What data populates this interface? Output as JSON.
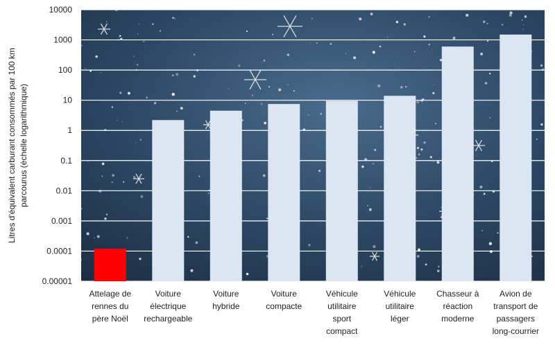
{
  "chart_data": {
    "type": "bar",
    "scale": "log",
    "categories": [
      "Attelage de rennes du père Noël",
      "Voiture électrique rechargeable",
      "Voiture hybride",
      "Voiture compacte",
      "Véhicule utilitaire sport compact",
      "Véhicule utilitaire léger",
      "Chasseur à réaction moderne",
      "Avion de transport de passagers long-courrier"
    ],
    "category_lines": [
      [
        "Attelage de",
        "rennes du",
        "père Noël"
      ],
      [
        "Voiture",
        "électrique",
        "rechargeable"
      ],
      [
        "Voiture",
        "hybride"
      ],
      [
        "Voiture",
        "compacte"
      ],
      [
        "Véhicule",
        "utilitaire",
        "sport",
        "compact"
      ],
      [
        "Véhicule",
        "utilitaire",
        "léger"
      ],
      [
        "Chasseur à",
        "réaction",
        "moderne"
      ],
      [
        "Avion de",
        "transport de",
        "passagers",
        "long-courrier"
      ]
    ],
    "values": [
      0.00012,
      2.2,
      4.5,
      7.5,
      9.5,
      14,
      600,
      1500
    ],
    "ylabel_lines": [
      "Litres d'équivalent carburant consommés par 100 km",
      "parcourus (échelle logarithmique)"
    ],
    "ylim": [
      1e-05,
      10000
    ],
    "ytick_labels": [
      "0.00001",
      "0.0001",
      "0.001",
      "0.01",
      "0.1",
      "1",
      "10",
      "100",
      "1000",
      "10000"
    ],
    "grid": true,
    "colors": {
      "highlight": "#ff0000",
      "bar": "#dce6f2",
      "background": "#2f4a66",
      "grid": "#ffffff"
    }
  }
}
